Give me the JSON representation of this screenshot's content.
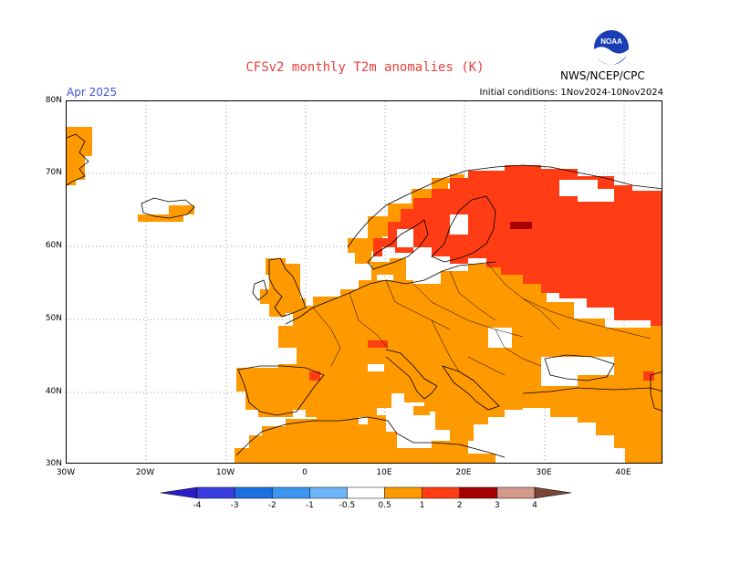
{
  "title": "CFSv2 monthly T2m anomalies (K)",
  "month": "Apr 2025",
  "initial_conditions": "Initial conditions:  1Nov2024-10Nov2024",
  "agency": "NWS/NCEP/CPC",
  "logo_text": "NOAA",
  "lat_labels": [
    "80N",
    "70N",
    "60N",
    "50N",
    "40N",
    "30N"
  ],
  "lon_labels": [
    "30W",
    "20W",
    "10W",
    "0",
    "10E",
    "20E",
    "30E",
    "40E"
  ],
  "legend": {
    "values": [
      "-4",
      "-3",
      "-2",
      "-1",
      "-0.5",
      "0.5",
      "1",
      "2",
      "3",
      "4"
    ],
    "colors": [
      "#2a1ec8",
      "#3b3fe0",
      "#1e6ee0",
      "#3c96f0",
      "#6eb4f8",
      "#ffffff",
      "#ff9900",
      "#ff3c14",
      "#a50000",
      "#d29b8c",
      "#784637"
    ]
  },
  "colors": {
    "anomaly_0_5_1": "#ff9900",
    "anomaly_1_2": "#ff3c14",
    "anomaly_2_3": "#a50000",
    "title": "#e8403a",
    "month": "#3a55d9"
  }
}
